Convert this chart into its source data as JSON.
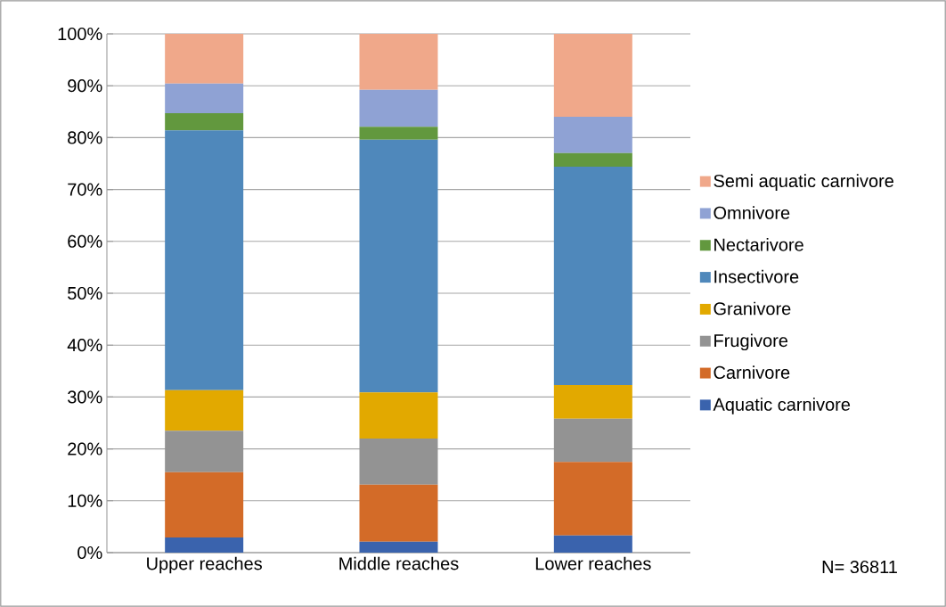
{
  "chart_data": {
    "type": "bar",
    "stacked": true,
    "categories": [
      "Upper reaches",
      "Middle reaches",
      "Lower reaches"
    ],
    "series": [
      {
        "name": "Aquatic carnivore",
        "color": "#3a63ad",
        "values": [
          2.9,
          2.1,
          3.3
        ]
      },
      {
        "name": "Carnivore",
        "color": "#d36b28",
        "values": [
          12.6,
          11.0,
          14.2
        ]
      },
      {
        "name": "Frugivore",
        "color": "#939393",
        "values": [
          8.0,
          8.9,
          8.3
        ]
      },
      {
        "name": "Granivore",
        "color": "#e2a900",
        "values": [
          7.8,
          8.9,
          6.5
        ]
      },
      {
        "name": "Insectivore",
        "color": "#4f88bb",
        "values": [
          50.1,
          48.7,
          42.1
        ]
      },
      {
        "name": "Nectarivore",
        "color": "#62983e",
        "values": [
          3.3,
          2.5,
          2.6
        ]
      },
      {
        "name": "Omnivore",
        "color": "#8fa2d4",
        "values": [
          5.7,
          7.1,
          7.0
        ]
      },
      {
        "name": "Semi aquatic carnivore",
        "color": "#f0a88a",
        "values": [
          9.6,
          10.8,
          16.0
        ]
      }
    ],
    "ylim": [
      0,
      100
    ],
    "yticks": [
      {
        "value": 0,
        "label": "0%"
      },
      {
        "value": 10,
        "label": "10%"
      },
      {
        "value": 20,
        "label": "20%"
      },
      {
        "value": 30,
        "label": "30%"
      },
      {
        "value": 40,
        "label": "40%"
      },
      {
        "value": 50,
        "label": "50%"
      },
      {
        "value": 60,
        "label": "60%"
      },
      {
        "value": 70,
        "label": "70%"
      },
      {
        "value": 80,
        "label": "80%"
      },
      {
        "value": 90,
        "label": "90%"
      },
      {
        "value": 100,
        "label": "100%"
      }
    ],
    "grid": "y",
    "legend": "right",
    "annotations": [
      "N= 36811"
    ]
  }
}
